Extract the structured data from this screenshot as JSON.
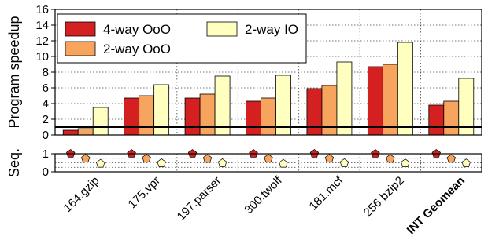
{
  "chart_data": [
    {
      "type": "bar",
      "ylabel": "Program speedup",
      "ylim": [
        0,
        16
      ],
      "yticks": [
        0,
        2,
        4,
        6,
        8,
        10,
        12,
        14,
        16
      ],
      "grid": true,
      "reference_line": 1,
      "legend_position": "top-left",
      "categories": [
        "164.gzip",
        "175.vpr",
        "197.parser",
        "300.twolf",
        "181.mcf",
        "256.bzip2",
        "INT Geomean"
      ],
      "series": [
        {
          "name": "4-way OoO",
          "color": "#d42020",
          "values": [
            0.6,
            4.7,
            4.7,
            4.3,
            5.9,
            8.7,
            3.8
          ]
        },
        {
          "name": "2-way OoO",
          "color": "#f7a55e",
          "values": [
            0.8,
            5.0,
            5.2,
            4.7,
            6.3,
            9.0,
            4.3
          ]
        },
        {
          "name": "2-way IO",
          "color": "#ffffc0",
          "values": [
            3.5,
            6.4,
            7.5,
            7.6,
            9.3,
            11.8,
            7.2
          ]
        }
      ]
    },
    {
      "type": "scatter",
      "ylabel": "Seq.",
      "ylim": [
        0,
        1
      ],
      "yticks": [
        0,
        1
      ],
      "grid": true,
      "marker": "pentagon",
      "categories": [
        "164.gzip",
        "175.vpr",
        "197.parser",
        "300.twolf",
        "181.mcf",
        "256.bzip2",
        "INT Geomean"
      ],
      "series": [
        {
          "name": "4-way OoO",
          "color": "#d42020",
          "values": [
            1.0,
            1.0,
            1.0,
            1.0,
            1.0,
            1.0,
            1.0
          ]
        },
        {
          "name": "2-way OoO",
          "color": "#f7a55e",
          "values": [
            0.73,
            0.73,
            0.72,
            0.73,
            0.73,
            0.72,
            0.72
          ]
        },
        {
          "name": "2-way IO",
          "color": "#ffffc0",
          "values": [
            0.45,
            0.48,
            0.48,
            0.45,
            0.48,
            0.47,
            0.47
          ]
        }
      ]
    }
  ]
}
